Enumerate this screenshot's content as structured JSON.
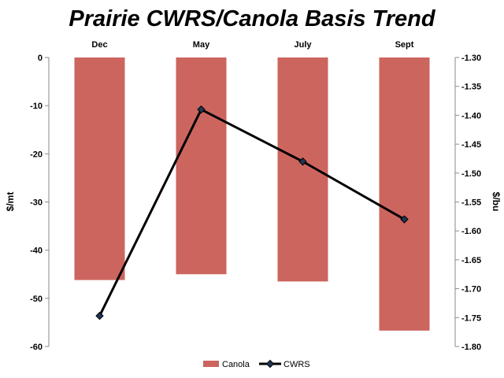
{
  "chart_data": {
    "type": "bar",
    "title": "Prairie CWRS/Canola Basis Trend",
    "categories": [
      "Dec",
      "May",
      "July",
      "Sept"
    ],
    "ylabel": "$/mt",
    "y2label": "$/bu",
    "ylim": [
      -60,
      0
    ],
    "y2lim": [
      -1.8,
      -1.3
    ],
    "yticks": [
      "0",
      "-10",
      "-20",
      "-30",
      "-40",
      "-50",
      "-60"
    ],
    "y2ticks": [
      "-1.30",
      "-1.35",
      "-1.40",
      "-1.45",
      "-1.50",
      "-1.55",
      "-1.60",
      "-1.65",
      "-1.70",
      "-1.75",
      "-1.80"
    ],
    "grid": false,
    "legend": "bottom",
    "series": [
      {
        "name": "Canola",
        "type": "bar",
        "axis": "left",
        "color": "#cd655f",
        "values": [
          -46.2,
          -45.0,
          -46.5,
          -56.7
        ]
      },
      {
        "name": "CWRS",
        "type": "line",
        "axis": "right",
        "color": "#000000",
        "values": [
          -1.747,
          -1.39,
          -1.48,
          -1.58
        ]
      }
    ]
  }
}
